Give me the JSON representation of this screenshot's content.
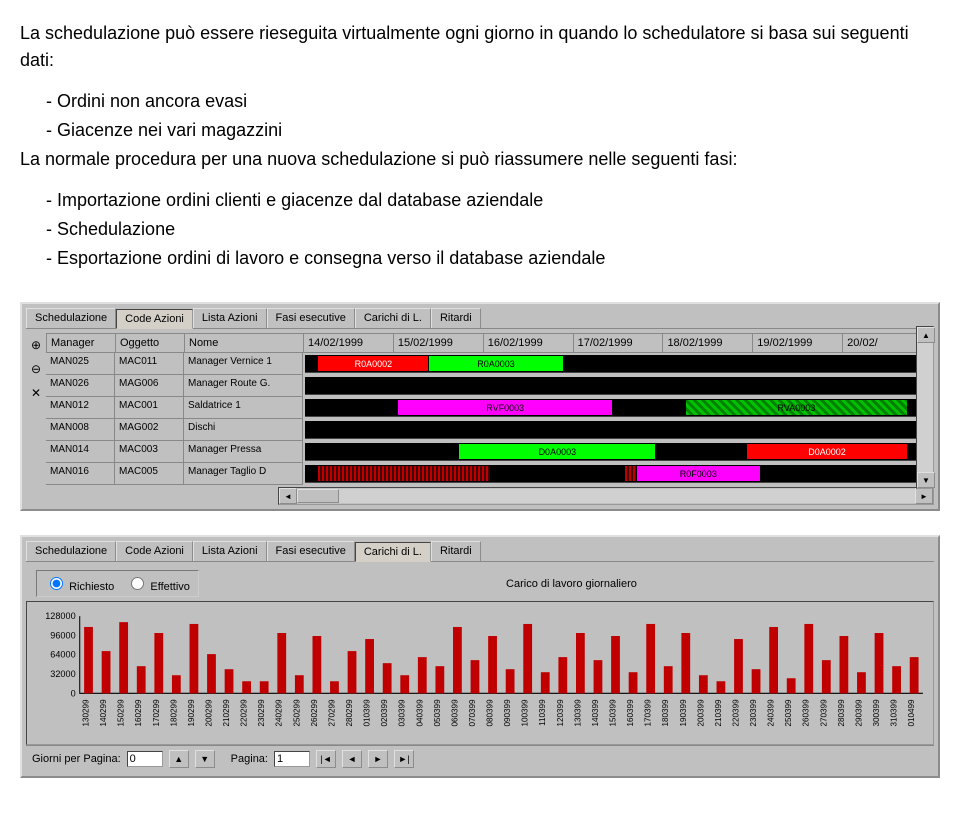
{
  "intro": {
    "p1": "La schedulazione può essere rieseguita virtualmente ogni giorno in quando lo schedulatore si basa sui seguenti dati:",
    "li1": "Ordini non ancora evasi",
    "li2": "Giacenze nei vari magazzini",
    "p2": "La normale procedura per una nuova schedulazione si può riassumere nelle seguenti fasi:",
    "li3": "Importazione ordini clienti e giacenze dal database aziendale",
    "li4": "Schedulazione",
    "li5": "Esportazione ordini di lavoro e consegna verso il database aziendale"
  },
  "tabs": [
    "Schedulazione",
    "Code Azioni",
    "Lista Azioni",
    "Fasi esecutive",
    "Carichi di L.",
    "Ritardi"
  ],
  "gantt": {
    "active_tab": 1,
    "cols": {
      "manager": "Manager",
      "oggetto": "Oggetto",
      "nome": "Nome"
    },
    "dates": [
      "14/02/1999",
      "15/02/1999",
      "16/02/1999",
      "17/02/1999",
      "18/02/1999",
      "19/02/1999",
      "20/02/"
    ],
    "rows": [
      {
        "manager": "MAN025",
        "oggetto": "MAC011",
        "nome": "Manager Vernice 1",
        "bars": [
          {
            "left": 2,
            "width": 18,
            "cls": "red",
            "label": "R0A0002"
          },
          {
            "left": 20,
            "width": 22,
            "cls": "green",
            "label": "R0A0003"
          }
        ]
      },
      {
        "manager": "MAN026",
        "oggetto": "MAG006",
        "nome": "Manager Route G.",
        "bars": []
      },
      {
        "manager": "MAN012",
        "oggetto": "MAC001",
        "nome": "Saldatrice 1",
        "bars": [
          {
            "left": 15,
            "width": 35,
            "cls": "magenta",
            "label": "RVF0003"
          },
          {
            "left": 62,
            "width": 36,
            "cls": "greenhatch",
            "label": "RVA0003"
          }
        ]
      },
      {
        "manager": "MAN008",
        "oggetto": "MAG002",
        "nome": "Dischi",
        "bars": []
      },
      {
        "manager": "MAN014",
        "oggetto": "MAC003",
        "nome": "Manager Pressa",
        "bars": [
          {
            "left": 25,
            "width": 32,
            "cls": "green",
            "label": "D0A0003"
          },
          {
            "left": 72,
            "width": 26,
            "cls": "red",
            "label": "D0A0002"
          }
        ]
      },
      {
        "manager": "MAN016",
        "oggetto": "MAC005",
        "nome": "Manager Taglio D",
        "bars": [
          {
            "left": 2,
            "width": 28,
            "cls": "redhatch",
            "label": ""
          },
          {
            "left": 52,
            "width": 22,
            "cls": "redhatch",
            "label": ""
          },
          {
            "left": 54,
            "width": 20,
            "cls": "magenta",
            "label": "R0F0003"
          }
        ]
      }
    ]
  },
  "chart_panel": {
    "active_tab": 4,
    "radio": {
      "richiesto": "Richiesto",
      "effettivo": "Effettivo",
      "selected": "richiesto"
    },
    "title": "Carico di lavoro giornaliero",
    "yticks": [
      "128000",
      "96000",
      "64000",
      "32000",
      "0"
    ],
    "ymax": 128000,
    "bar_color": "#c00000",
    "xlabels": [
      "130299",
      "140299",
      "150299",
      "160299",
      "170299",
      "180299",
      "190299",
      "200299",
      "210299",
      "220299",
      "230299",
      "240299",
      "250299",
      "260299",
      "270299",
      "280299",
      "010399",
      "020399",
      "030399",
      "040399",
      "050399",
      "060399",
      "070399",
      "080399",
      "090399",
      "100399",
      "110399",
      "120399",
      "130399",
      "140399",
      "150399",
      "160399",
      "170399",
      "180399",
      "190399",
      "200399",
      "210399",
      "220399",
      "230399",
      "240399",
      "250399",
      "260399",
      "270399",
      "280399",
      "290399",
      "300399",
      "310399",
      "010499"
    ],
    "values": [
      110000,
      70000,
      118000,
      45000,
      100000,
      30000,
      115000,
      65000,
      40000,
      20000,
      20000,
      100000,
      30000,
      95000,
      20000,
      70000,
      90000,
      50000,
      30000,
      60000,
      45000,
      110000,
      55000,
      95000,
      40000,
      115000,
      35000,
      60000,
      100000,
      55000,
      95000,
      35000,
      115000,
      45000,
      100000,
      30000,
      20000,
      90000,
      40000,
      110000,
      25000,
      115000,
      55000,
      95000,
      35000,
      100000,
      45000,
      60000
    ]
  },
  "pager": {
    "label1": "Giorni per Pagina:",
    "val1": "0",
    "label2": "Pagina:",
    "val2": "1"
  },
  "colors": {
    "panel_bg": "#c0c0c0",
    "track_bg": "#000000"
  }
}
